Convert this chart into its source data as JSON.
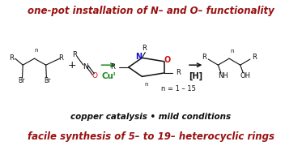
{
  "title_top": "one-pot installation of N– and O– functionality",
  "title_bottom": "facile synthesis of 5– to 19– heterocyclic rings",
  "middle_text": "copper catalysis • mild conditions",
  "n_label": "n = 1 – 15",
  "cu_label": "Cuᴵ",
  "h_label": "[H]",
  "title_color": "#991111",
  "cu_color": "#228B22",
  "n_color": "#1414CC",
  "o_color": "#CC1111",
  "black": "#111111",
  "bg_color": "#ffffff"
}
